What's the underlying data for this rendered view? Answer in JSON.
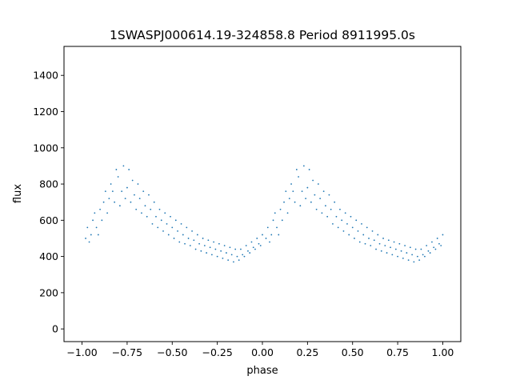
{
  "chart_data": {
    "type": "scatter",
    "title": "1SWASPJ000614.19-324858.8 Period 8911995.0s",
    "xlabel": "phase",
    "ylabel": "flux",
    "xlim": [
      -1.1,
      1.1
    ],
    "ylim": [
      -70,
      1560
    ],
    "x_ticks": [
      -1.0,
      -0.75,
      -0.5,
      -0.25,
      0.0,
      0.25,
      0.5,
      0.75,
      1.0
    ],
    "x_tick_labels": [
      "−1.00",
      "−0.75",
      "−0.50",
      "−0.25",
      "0.00",
      "0.25",
      "0.50",
      "0.75",
      "1.00"
    ],
    "y_ticks": [
      0,
      200,
      400,
      600,
      800,
      1000,
      1200,
      1400
    ],
    "y_tick_labels": [
      "0",
      "200",
      "400",
      "600",
      "800",
      "1000",
      "1200",
      "1400"
    ],
    "grid": false,
    "point_color": "#1f77b4",
    "series": [
      {
        "phase_repeat": 1.0,
        "values": [
          [
            -0.98,
            500
          ],
          [
            -0.97,
            560
          ],
          [
            -0.96,
            480
          ],
          [
            -0.95,
            520
          ],
          [
            -0.94,
            600
          ],
          [
            -0.93,
            640
          ],
          [
            -0.92,
            560
          ],
          [
            -0.91,
            520
          ],
          [
            -0.9,
            660
          ],
          [
            -0.89,
            600
          ],
          [
            -0.88,
            700
          ],
          [
            -0.87,
            760
          ],
          [
            -0.86,
            640
          ],
          [
            -0.85,
            720
          ],
          [
            -0.84,
            800
          ],
          [
            -0.83,
            760
          ],
          [
            -0.82,
            700
          ],
          [
            -0.81,
            880
          ],
          [
            -0.8,
            840
          ],
          [
            -0.79,
            680
          ],
          [
            -0.78,
            760
          ],
          [
            -0.77,
            900
          ],
          [
            -0.76,
            720
          ],
          [
            -0.75,
            780
          ],
          [
            -0.74,
            880
          ],
          [
            -0.73,
            700
          ],
          [
            -0.72,
            820
          ],
          [
            -0.71,
            740
          ],
          [
            -0.7,
            660
          ],
          [
            -0.69,
            800
          ],
          [
            -0.68,
            720
          ],
          [
            -0.67,
            640
          ],
          [
            -0.66,
            760
          ],
          [
            -0.65,
            680
          ],
          [
            -0.64,
            620
          ],
          [
            -0.63,
            740
          ],
          [
            -0.62,
            660
          ],
          [
            -0.61,
            580
          ],
          [
            -0.6,
            700
          ],
          [
            -0.59,
            620
          ],
          [
            -0.58,
            560
          ],
          [
            -0.57,
            660
          ],
          [
            -0.56,
            600
          ],
          [
            -0.55,
            540
          ],
          [
            -0.54,
            640
          ],
          [
            -0.53,
            580
          ],
          [
            -0.52,
            520
          ],
          [
            -0.51,
            620
          ],
          [
            -0.5,
            560
          ],
          [
            -0.49,
            500
          ],
          [
            -0.48,
            600
          ],
          [
            -0.47,
            540
          ],
          [
            -0.46,
            480
          ],
          [
            -0.45,
            580
          ],
          [
            -0.44,
            520
          ],
          [
            -0.43,
            470
          ],
          [
            -0.42,
            560
          ],
          [
            -0.41,
            500
          ],
          [
            -0.4,
            460
          ],
          [
            -0.39,
            540
          ],
          [
            -0.38,
            490
          ],
          [
            -0.37,
            440
          ],
          [
            -0.36,
            520
          ],
          [
            -0.35,
            470
          ],
          [
            -0.34,
            430
          ],
          [
            -0.33,
            500
          ],
          [
            -0.32,
            460
          ],
          [
            -0.31,
            420
          ],
          [
            -0.3,
            490
          ],
          [
            -0.29,
            450
          ],
          [
            -0.28,
            410
          ],
          [
            -0.27,
            480
          ],
          [
            -0.26,
            440
          ],
          [
            -0.25,
            400
          ],
          [
            -0.24,
            470
          ],
          [
            -0.23,
            430
          ],
          [
            -0.22,
            390
          ],
          [
            -0.21,
            460
          ],
          [
            -0.2,
            420
          ],
          [
            -0.19,
            380
          ],
          [
            -0.18,
            450
          ],
          [
            -0.17,
            410
          ],
          [
            -0.16,
            370
          ],
          [
            -0.15,
            440
          ],
          [
            -0.14,
            400
          ],
          [
            -0.13,
            380
          ],
          [
            -0.12,
            440
          ],
          [
            -0.11,
            410
          ],
          [
            -0.1,
            400
          ],
          [
            -0.09,
            460
          ],
          [
            -0.08,
            430
          ],
          [
            -0.07,
            420
          ],
          [
            -0.06,
            480
          ],
          [
            -0.05,
            450
          ],
          [
            -0.04,
            440
          ],
          [
            -0.03,
            500
          ],
          [
            -0.02,
            470
          ],
          [
            -0.01,
            460
          ],
          [
            0.0,
            520
          ]
        ]
      }
    ]
  }
}
